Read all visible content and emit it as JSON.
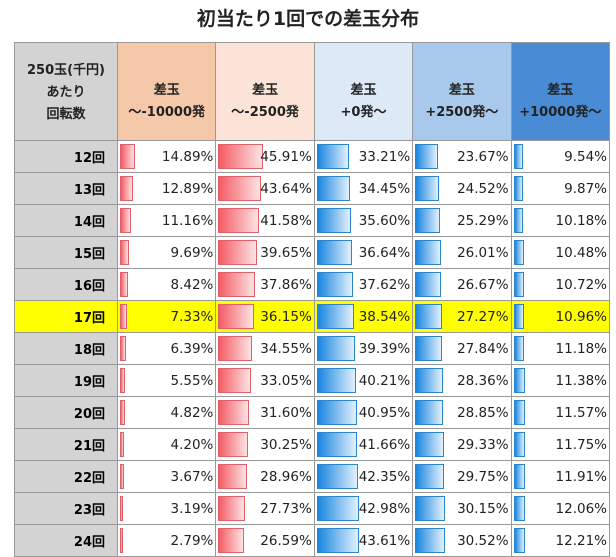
{
  "chart_data": {
    "type": "table",
    "title": "初当たり1回での差玉分布",
    "row_header": [
      "250玉(千円)",
      "あたり",
      "回転数"
    ],
    "columns": [
      {
        "line1": "差玉",
        "line2": "～-10000発",
        "color": "#f5c8aa",
        "bar": "red"
      },
      {
        "line1": "差玉",
        "line2": "～-2500発",
        "color": "#fbe4d7",
        "bar": "red"
      },
      {
        "line1": "差玉",
        "line2": "+0発～",
        "color": "#dde9f7",
        "bar": "blue"
      },
      {
        "line1": "差玉",
        "line2": "+2500発～",
        "color": "#a9c9ec",
        "bar": "blue"
      },
      {
        "line1": "差玉",
        "line2": "+10000発～",
        "color": "#4a8bd5",
        "bar": "blue"
      }
    ],
    "highlight_row": "17回",
    "highlight_color": "#ffff00",
    "rows": [
      {
        "label": "12回",
        "values": [
          14.89,
          45.91,
          33.21,
          23.67,
          9.54
        ]
      },
      {
        "label": "13回",
        "values": [
          12.89,
          43.64,
          34.45,
          24.52,
          9.87
        ]
      },
      {
        "label": "14回",
        "values": [
          11.16,
          41.58,
          35.6,
          25.29,
          10.18
        ]
      },
      {
        "label": "15回",
        "values": [
          9.69,
          39.65,
          36.64,
          26.01,
          10.48
        ]
      },
      {
        "label": "16回",
        "values": [
          8.42,
          37.86,
          37.62,
          26.67,
          10.72
        ]
      },
      {
        "label": "17回",
        "values": [
          7.33,
          36.15,
          38.54,
          27.27,
          10.96
        ]
      },
      {
        "label": "18回",
        "values": [
          6.39,
          34.55,
          39.39,
          27.84,
          11.18
        ]
      },
      {
        "label": "19回",
        "values": [
          5.55,
          33.05,
          40.21,
          28.36,
          11.38
        ]
      },
      {
        "label": "20回",
        "values": [
          4.82,
          31.6,
          40.95,
          28.85,
          11.57
        ]
      },
      {
        "label": "21回",
        "values": [
          4.2,
          30.25,
          41.66,
          29.33,
          11.75
        ]
      },
      {
        "label": "22回",
        "values": [
          3.67,
          28.96,
          42.35,
          29.75,
          11.91
        ]
      },
      {
        "label": "23回",
        "values": [
          3.19,
          27.73,
          42.98,
          30.15,
          12.06
        ]
      },
      {
        "label": "24回",
        "values": [
          2.79,
          26.59,
          43.61,
          30.52,
          12.21
        ]
      }
    ]
  }
}
